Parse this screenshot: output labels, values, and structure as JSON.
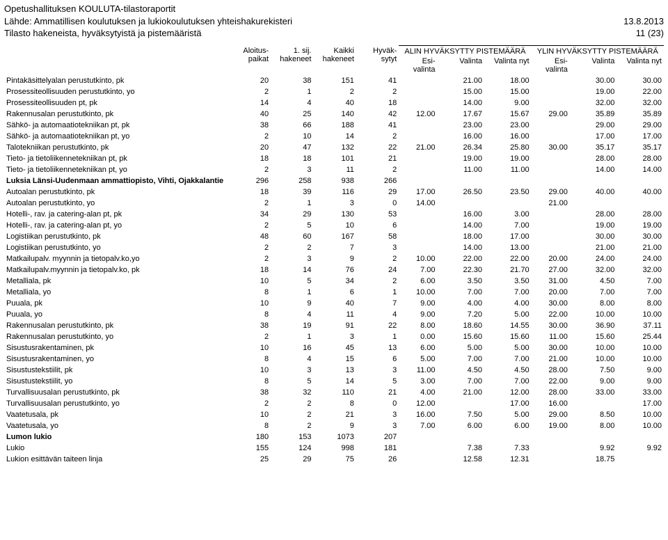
{
  "header": {
    "line1": "Opetushallituksen KOULUTA-tilastoraportit",
    "line2": "Lähde: Ammatillisen koulutuksen ja lukiokoulutuksen yhteishakurekisteri",
    "date": "13.8.2013",
    "line3": "Tilasto hakeneista, hyväksytyistä ja pistemääristä",
    "page": "11 (23)"
  },
  "columns": {
    "label": "",
    "c1": "Aloitus-\npaikat",
    "c2": "1. sij.\nhakeneet",
    "c3": "Kaikki\nhakeneet",
    "c4": "Hyväk-\nsytyt",
    "alin_group": "ALIN HYVÄKSYTTY PISTEMÄÄRÄ",
    "ylin_group": "YLIN HYVÄKSYTTY PISTEMÄÄRÄ",
    "esi": "Esi-\nvalinta",
    "valinta": "Valinta",
    "valinta_nyt": "Valinta nyt"
  },
  "rows": [
    {
      "label": "Pintakäsittelyalan perustutkinto, pk",
      "d": [
        "20",
        "38",
        "151",
        "41",
        "",
        "21.00",
        "18.00",
        "",
        "30.00",
        "30.00"
      ]
    },
    {
      "label": "Prosessiteollisuuden perustutkinto, yo",
      "d": [
        "2",
        "1",
        "2",
        "2",
        "",
        "15.00",
        "15.00",
        "",
        "19.00",
        "22.00"
      ]
    },
    {
      "label": "Prosessiteollisuuden pt, pk",
      "d": [
        "14",
        "4",
        "40",
        "18",
        "",
        "14.00",
        "9.00",
        "",
        "32.00",
        "32.00"
      ]
    },
    {
      "label": "Rakennusalan perustutkinto, pk",
      "d": [
        "40",
        "25",
        "140",
        "42",
        "12.00",
        "17.67",
        "15.67",
        "29.00",
        "35.89",
        "35.89"
      ]
    },
    {
      "label": "Sähkö- ja automaatiotekniikan pt, pk",
      "d": [
        "38",
        "66",
        "188",
        "41",
        "",
        "23.00",
        "23.00",
        "",
        "29.00",
        "29.00"
      ]
    },
    {
      "label": "Sähkö- ja automaatiotekniikan pt, yo",
      "d": [
        "2",
        "10",
        "14",
        "2",
        "",
        "16.00",
        "16.00",
        "",
        "17.00",
        "17.00"
      ]
    },
    {
      "label": "Talotekniikan perustutkinto, pk",
      "d": [
        "20",
        "47",
        "132",
        "22",
        "21.00",
        "26.34",
        "25.80",
        "30.00",
        "35.17",
        "35.17"
      ]
    },
    {
      "label": "Tieto- ja tietoliikennetekniikan pt, pk",
      "d": [
        "18",
        "18",
        "101",
        "21",
        "",
        "19.00",
        "19.00",
        "",
        "28.00",
        "28.00"
      ]
    },
    {
      "label": "Tieto- ja tietoliikennetekniikan pt, yo",
      "d": [
        "2",
        "3",
        "11",
        "2",
        "",
        "11.00",
        "11.00",
        "",
        "14.00",
        "14.00"
      ]
    },
    {
      "label": "Luksia Länsi-Uudenmaan ammattiopisto, Vihti, Ojakkalantie",
      "bold": true,
      "d": [
        "296",
        "258",
        "938",
        "266",
        "",
        "",
        "",
        "",
        "",
        ""
      ]
    },
    {
      "label": "Autoalan perustutkinto, pk",
      "d": [
        "18",
        "39",
        "116",
        "29",
        "17.00",
        "26.50",
        "23.50",
        "29.00",
        "40.00",
        "40.00"
      ]
    },
    {
      "label": "Autoalan perustutkinto, yo",
      "d": [
        "2",
        "1",
        "3",
        "0",
        "14.00",
        "",
        "",
        "21.00",
        "",
        ""
      ]
    },
    {
      "label": "Hotelli-, rav. ja catering-alan pt, pk",
      "d": [
        "34",
        "29",
        "130",
        "53",
        "",
        "16.00",
        "3.00",
        "",
        "28.00",
        "28.00"
      ]
    },
    {
      "label": "Hotelli-, rav. ja catering-alan pt, yo",
      "d": [
        "2",
        "5",
        "10",
        "6",
        "",
        "14.00",
        "7.00",
        "",
        "19.00",
        "19.00"
      ]
    },
    {
      "label": "Logistiikan perustutkinto, pk",
      "d": [
        "48",
        "60",
        "167",
        "58",
        "",
        "18.00",
        "17.00",
        "",
        "30.00",
        "30.00"
      ]
    },
    {
      "label": "Logistiikan perustutkinto, yo",
      "d": [
        "2",
        "2",
        "7",
        "3",
        "",
        "14.00",
        "13.00",
        "",
        "21.00",
        "21.00"
      ]
    },
    {
      "label": "Matkailupalv. myynnin ja tietopalv.ko,yo",
      "d": [
        "2",
        "3",
        "9",
        "2",
        "10.00",
        "22.00",
        "22.00",
        "20.00",
        "24.00",
        "24.00"
      ]
    },
    {
      "label": "Matkailupalv.myynnin ja tietopalv.ko, pk",
      "d": [
        "18",
        "14",
        "76",
        "24",
        "7.00",
        "22.30",
        "21.70",
        "27.00",
        "32.00",
        "32.00"
      ]
    },
    {
      "label": "Metalliala, pk",
      "d": [
        "10",
        "5",
        "34",
        "2",
        "6.00",
        "3.50",
        "3.50",
        "31.00",
        "4.50",
        "7.00"
      ]
    },
    {
      "label": "Metalliala, yo",
      "d": [
        "8",
        "1",
        "6",
        "1",
        "10.00",
        "7.00",
        "7.00",
        "20.00",
        "7.00",
        "7.00"
      ]
    },
    {
      "label": "Puuala, pk",
      "d": [
        "10",
        "9",
        "40",
        "7",
        "9.00",
        "4.00",
        "4.00",
        "30.00",
        "8.00",
        "8.00"
      ]
    },
    {
      "label": "Puuala, yo",
      "d": [
        "8",
        "4",
        "11",
        "4",
        "9.00",
        "7.20",
        "5.00",
        "22.00",
        "10.00",
        "10.00"
      ]
    },
    {
      "label": "Rakennusalan perustutkinto, pk",
      "d": [
        "38",
        "19",
        "91",
        "22",
        "8.00",
        "18.60",
        "14.55",
        "30.00",
        "36.90",
        "37.11"
      ]
    },
    {
      "label": "Rakennusalan perustutkinto, yo",
      "d": [
        "2",
        "1",
        "3",
        "1",
        "0.00",
        "15.60",
        "15.60",
        "11.00",
        "15.60",
        "25.44"
      ]
    },
    {
      "label": "Sisustusrakentaminen, pk",
      "d": [
        "10",
        "16",
        "45",
        "13",
        "6.00",
        "5.00",
        "5.00",
        "30.00",
        "10.00",
        "10.00"
      ]
    },
    {
      "label": "Sisustusrakentaminen, yo",
      "d": [
        "8",
        "4",
        "15",
        "6",
        "5.00",
        "7.00",
        "7.00",
        "21.00",
        "10.00",
        "10.00"
      ]
    },
    {
      "label": "Sisustustekstiilit, pk",
      "d": [
        "10",
        "3",
        "13",
        "3",
        "11.00",
        "4.50",
        "4.50",
        "28.00",
        "7.50",
        "9.00"
      ]
    },
    {
      "label": "Sisustustekstiilit, yo",
      "d": [
        "8",
        "5",
        "14",
        "5",
        "3.00",
        "7.00",
        "7.00",
        "22.00",
        "9.00",
        "9.00"
      ]
    },
    {
      "label": "Turvallisuusalan perustutkinto, pk",
      "d": [
        "38",
        "32",
        "110",
        "21",
        "4.00",
        "21.00",
        "12.00",
        "28.00",
        "33.00",
        "33.00"
      ]
    },
    {
      "label": "Turvallisuusalan perustutkinto, yo",
      "d": [
        "2",
        "2",
        "8",
        "0",
        "12.00",
        "",
        "17.00",
        "16.00",
        "",
        "17.00"
      ]
    },
    {
      "label": "Vaatetusala, pk",
      "d": [
        "10",
        "2",
        "21",
        "3",
        "16.00",
        "7.50",
        "5.00",
        "29.00",
        "8.50",
        "10.00"
      ]
    },
    {
      "label": "Vaatetusala, yo",
      "d": [
        "8",
        "2",
        "9",
        "3",
        "7.00",
        "6.00",
        "6.00",
        "19.00",
        "8.00",
        "10.00"
      ]
    },
    {
      "label": "Lumon lukio",
      "bold": true,
      "d": [
        "180",
        "153",
        "1073",
        "207",
        "",
        "",
        "",
        "",
        "",
        ""
      ]
    },
    {
      "label": "Lukio",
      "d": [
        "155",
        "124",
        "998",
        "181",
        "",
        "7.38",
        "7.33",
        "",
        "9.92",
        "9.92"
      ]
    },
    {
      "label": "Lukion esittävän taiteen linja",
      "d": [
        "25",
        "29",
        "75",
        "26",
        "",
        "12.58",
        "12.31",
        "",
        "18.75",
        ""
      ]
    }
  ]
}
